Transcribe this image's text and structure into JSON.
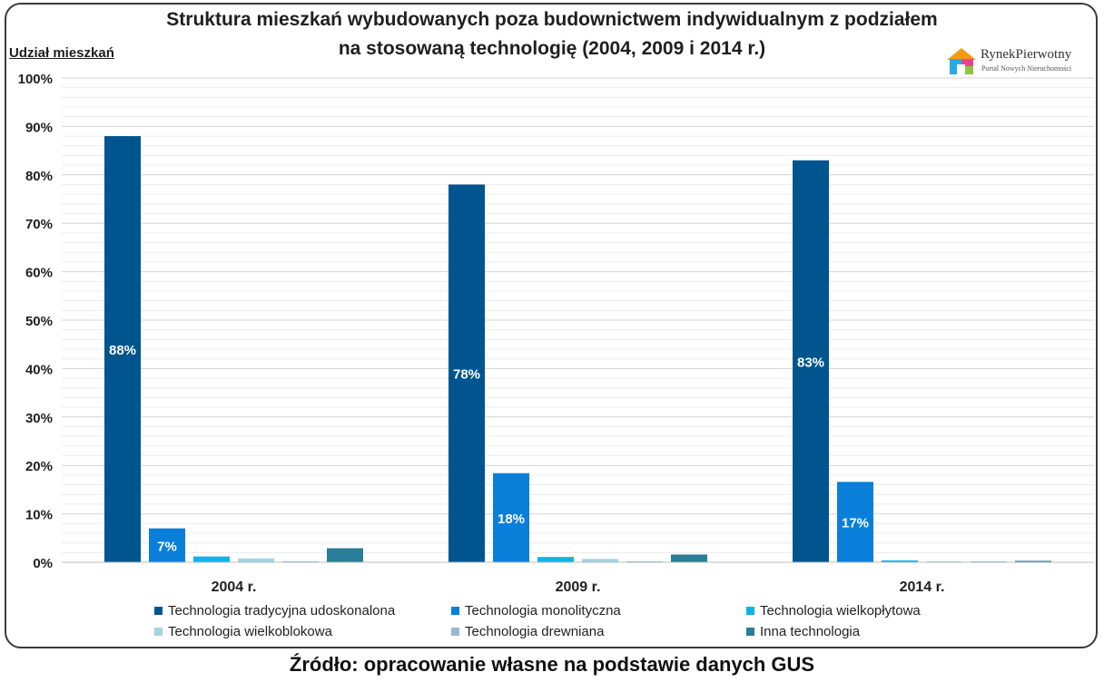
{
  "source_text": "Źródło: opracowanie własne na podstawie danych GUS",
  "logo": {
    "name": "RynekPierwotny",
    "tagline": "Portal Nowych Nieruchomości"
  },
  "chart_data": {
    "type": "bar",
    "title_lines": [
      "Struktura mieszkań wybudowanych poza budownictwem indywidualnym z podziałem",
      "na stosowaną technologię (2004, 2009 i 2014 r.)"
    ],
    "ylabel": "Udział mieszkań",
    "xlabel": "",
    "ylim": [
      0,
      100
    ],
    "yticks": [
      0,
      10,
      20,
      30,
      40,
      50,
      60,
      70,
      80,
      90,
      100
    ],
    "ytick_suffix": "%",
    "grid": true,
    "legend_position": "bottom",
    "categories": [
      "2004 r.",
      "2009 r.",
      "2014 r."
    ],
    "series": [
      {
        "name": "Technologia tradycyjna udoskonalona",
        "color": "#00558f",
        "values": [
          88,
          78,
          83
        ],
        "labels": [
          "88%",
          "78%",
          "83%"
        ]
      },
      {
        "name": "Technologia monolityczna",
        "color": "#0a7fda",
        "values": [
          7,
          18.4,
          16.6
        ],
        "labels": [
          "7%",
          "18%",
          "17%"
        ]
      },
      {
        "name": "Technologia wielkopłytowa",
        "color": "#10b3e8",
        "values": [
          1.2,
          1.1,
          0.4
        ],
        "labels": [
          "",
          "",
          ""
        ]
      },
      {
        "name": "Technologia wielkoblokowa",
        "color": "#a3d3e1",
        "values": [
          0.8,
          0.7,
          0.2
        ],
        "labels": [
          "",
          "",
          ""
        ]
      },
      {
        "name": "Technologia drewniana",
        "color": "#98b7d7",
        "values": [
          0.2,
          0.2,
          0.2
        ],
        "labels": [
          "",
          "",
          ""
        ]
      },
      {
        "name": "Inna technologia",
        "color": "#2a7e97",
        "values": [
          2.9,
          1.6,
          0.3
        ],
        "labels": [
          "",
          "",
          ""
        ]
      }
    ]
  }
}
